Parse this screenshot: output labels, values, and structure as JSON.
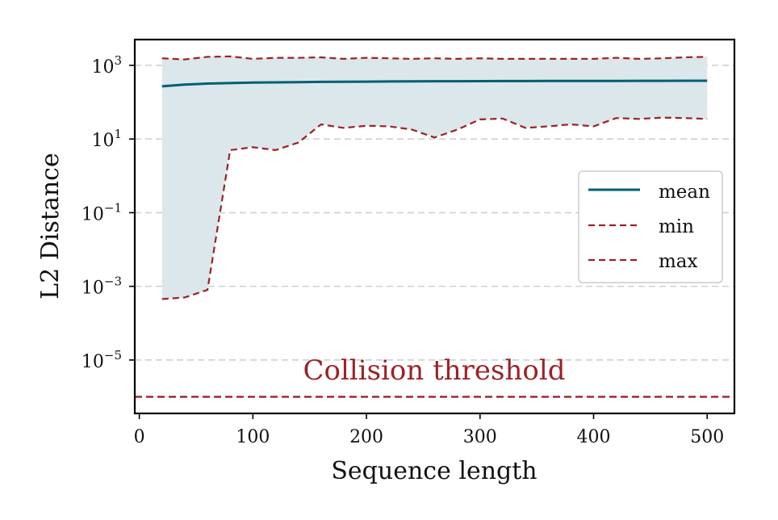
{
  "chart_data": {
    "type": "line",
    "xlabel": "Sequence length",
    "ylabel": "L2 Distance",
    "yscale": "log",
    "xlim": [
      -4,
      524
    ],
    "ylim_exp": [
      -6.45,
      3.7
    ],
    "x_ticks": [
      0,
      100,
      200,
      300,
      400,
      500
    ],
    "y_ticks": [
      {
        "exp": 3,
        "base": "10",
        "sup": "3"
      },
      {
        "exp": 1,
        "base": "10",
        "sup": "1"
      },
      {
        "exp": -1,
        "base": "10",
        "sup": "−1"
      },
      {
        "exp": -3,
        "base": "10",
        "sup": "−3"
      },
      {
        "exp": -5,
        "base": "10",
        "sup": "−5"
      }
    ],
    "grid": "horizontal-dashed",
    "x": [
      20,
      40,
      60,
      80,
      100,
      120,
      140,
      160,
      180,
      200,
      220,
      240,
      260,
      280,
      300,
      320,
      340,
      360,
      380,
      400,
      420,
      440,
      460,
      480,
      500
    ],
    "series": [
      {
        "name": "mean",
        "color": "#005f73",
        "style": "solid",
        "values": [
          270,
          300,
          320,
          330,
          340,
          345,
          350,
          355,
          360,
          362,
          365,
          368,
          370,
          370,
          372,
          374,
          375,
          376,
          377,
          378,
          379,
          380,
          380,
          381,
          382
        ]
      },
      {
        "name": "min",
        "color": "#9b2226",
        "style": "dashed",
        "values": [
          0.00045,
          0.0005,
          0.0008,
          5,
          6,
          5,
          8,
          25,
          20,
          23,
          22,
          18,
          11,
          18,
          34,
          36,
          20,
          22,
          25,
          22,
          37,
          35,
          38,
          37,
          35
        ]
      },
      {
        "name": "max",
        "color": "#9b2226",
        "style": "dashed",
        "values": [
          1550,
          1450,
          1700,
          1750,
          1500,
          1600,
          1600,
          1650,
          1500,
          1600,
          1550,
          1500,
          1550,
          1500,
          1550,
          1500,
          1500,
          1500,
          1500,
          1500,
          1600,
          1500,
          1550,
          1650,
          1700
        ]
      }
    ],
    "fill_between": {
      "lower": "min",
      "upper": "max",
      "color": "#dbe7ea"
    },
    "threshold": {
      "label": "Collision threshold",
      "value_exp": -6,
      "color": "#9b2226",
      "style": "dashed"
    },
    "legend": {
      "position": "center-right",
      "entries": [
        "mean",
        "min",
        "max"
      ]
    }
  }
}
